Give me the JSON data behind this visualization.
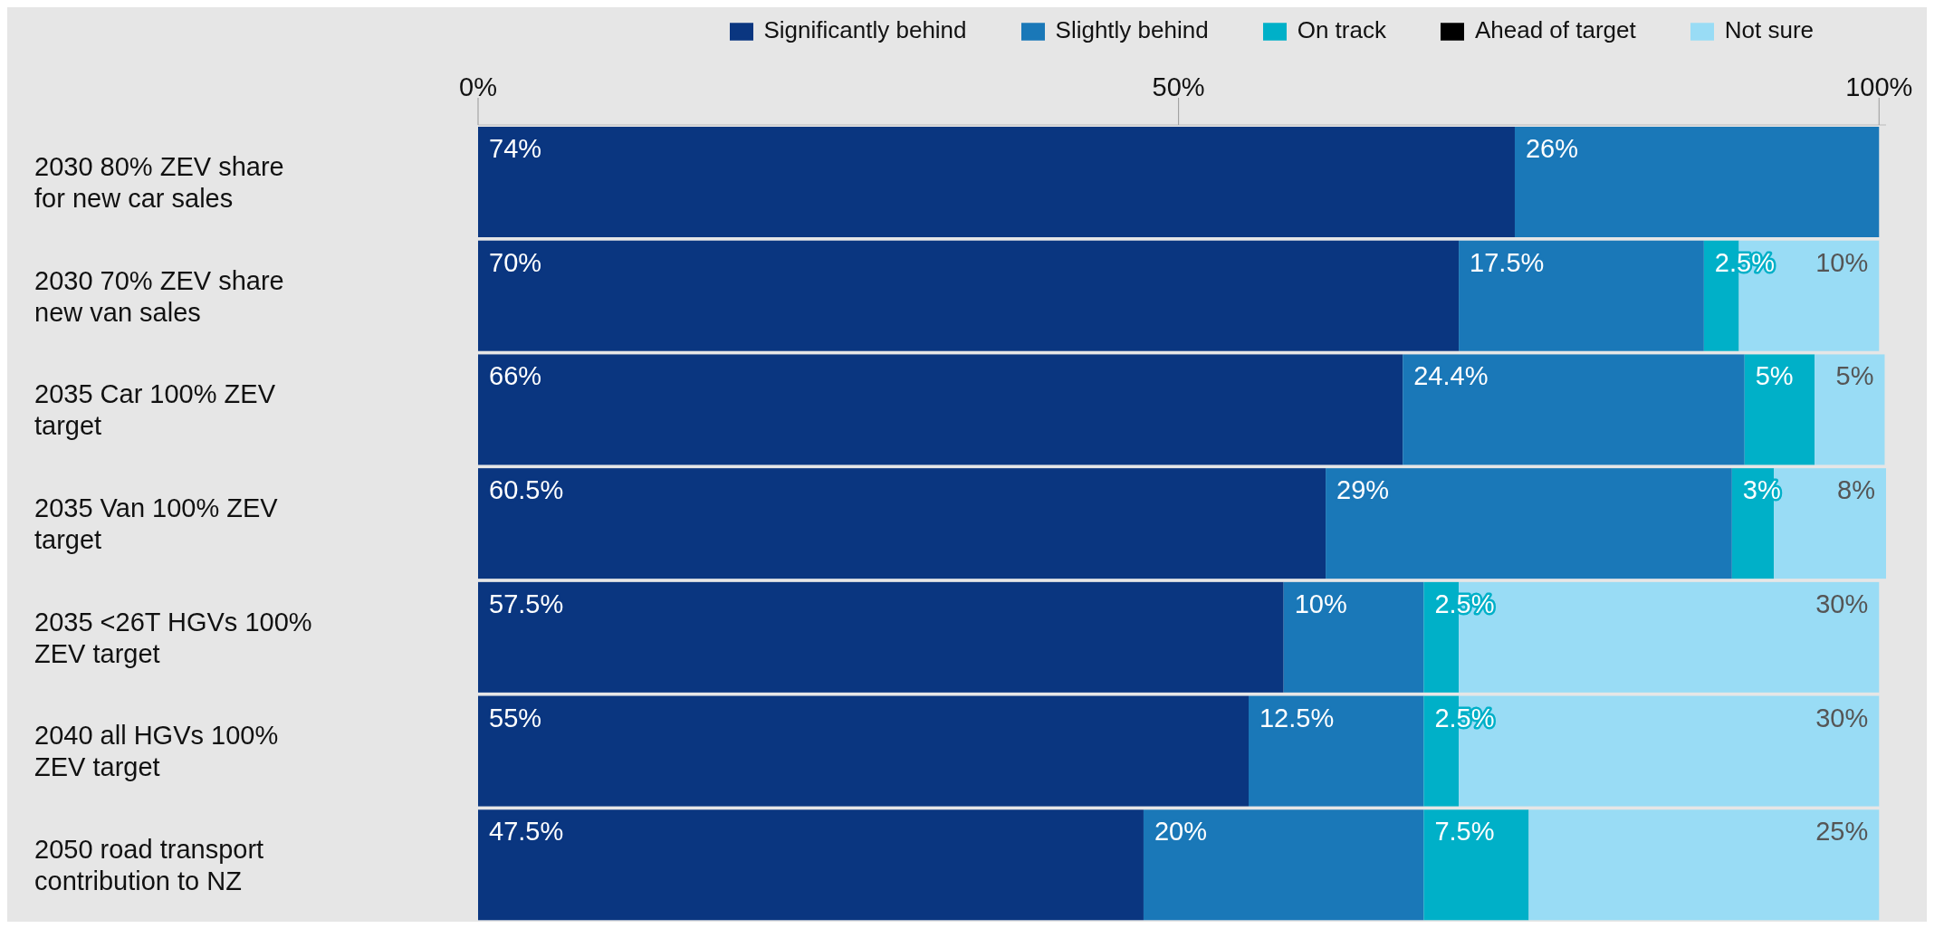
{
  "chart_data": {
    "type": "bar",
    "orientation": "horizontal",
    "stacked": true,
    "legend": "top right",
    "grid": false,
    "categories": [
      "2030 80% ZEV share for new car sales",
      "2030 70% ZEV share new van sales",
      "2035 Car 100% ZEV target",
      "2035 Van 100% ZEV target",
      "2035 <26T HGVs 100% ZEV target",
      "2040 all HGVs 100% ZEV target",
      "2050 road transport contribution to NZ"
    ],
    "xlim": [
      0,
      100.5
    ],
    "xticks": [
      {
        "value": 0,
        "label": "0%"
      },
      {
        "value": 50,
        "label": "50%"
      },
      {
        "value": 100,
        "label": "100%"
      }
    ],
    "series": [
      {
        "name": "Significantly behind",
        "color": "#0a3680",
        "values": [
          74,
          70,
          66,
          60.5,
          57.5,
          55,
          47.5
        ],
        "value_labels": [
          "74%",
          "70%",
          "66%",
          "60.5%",
          "57.5%",
          "55%",
          "47.5%"
        ]
      },
      {
        "name": "Slightly behind",
        "color": "#1a78b8",
        "values": [
          26,
          17.5,
          24.4,
          29,
          10,
          12.5,
          20
        ],
        "value_labels": [
          "26%",
          "17.5%",
          "24.4%",
          "29%",
          "10%",
          "12.5%",
          "20%"
        ]
      },
      {
        "name": "On track",
        "color": "#00b0c8",
        "values": [
          0,
          2.5,
          5,
          3,
          2.5,
          2.5,
          7.5
        ],
        "value_labels": [
          null,
          "2.5%",
          "5%",
          "3%",
          "2.5%",
          "2.5%",
          "7.5%"
        ]
      },
      {
        "name": "Ahead of target",
        "color": "#000000",
        "values": [
          0,
          0,
          0,
          0,
          0,
          0,
          0
        ],
        "value_labels": [
          null,
          null,
          null,
          null,
          null,
          null,
          null
        ]
      },
      {
        "name": "Not sure",
        "color": "#99dcf5",
        "values": [
          0,
          10,
          5,
          8,
          30,
          30,
          25
        ],
        "value_labels": [
          null,
          "10%",
          "5%",
          "8%",
          "30%",
          "30%",
          "25%"
        ]
      }
    ]
  }
}
